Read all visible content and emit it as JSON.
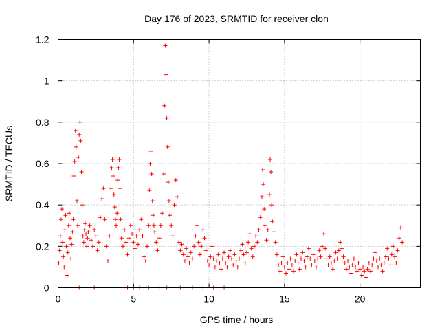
{
  "chart_data": {
    "type": "scatter",
    "title": "Day 176 of 2023, SRMTID for receiver clon",
    "xlabel": "GPS time / hours",
    "ylabel": "SRMTID / TECUs",
    "xlim": [
      0,
      24
    ],
    "ylim": [
      0,
      1.2
    ],
    "xticks": [
      0,
      5,
      10,
      15,
      20
    ],
    "xtick_labels": [
      "0",
      "5",
      "10",
      "15",
      "20"
    ],
    "yticks": [
      0,
      0.2,
      0.4,
      0.6,
      0.8,
      1,
      1.2
    ],
    "ytick_labels": [
      "0",
      "0.2",
      "0.4",
      "0.6",
      "0.8",
      "1",
      "1.2"
    ],
    "grid": true,
    "marker": "+",
    "color": "#ff0000",
    "series": [
      {
        "name": "SRMTID",
        "points": [
          [
            0.05,
            0.12
          ],
          [
            0.1,
            0.18
          ],
          [
            0.15,
            0.25
          ],
          [
            0.2,
            0.33
          ],
          [
            0.25,
            0.38
          ],
          [
            0.3,
            0.22
          ],
          [
            0.35,
            0.15
          ],
          [
            0.4,
            0.1
          ],
          [
            0.45,
            0.28
          ],
          [
            0.5,
            0.35
          ],
          [
            0.55,
            0.2
          ],
          [
            0.6,
            0.06
          ],
          [
            0.65,
            0.17
          ],
          [
            0.7,
            0.3
          ],
          [
            0.75,
            0.36
          ],
          [
            0.8,
            0.24
          ],
          [
            0.85,
            0.14
          ],
          [
            0.9,
            0.21
          ],
          [
            0.95,
            0.27
          ],
          [
            1.0,
            0.33
          ],
          [
            1.05,
            0.54
          ],
          [
            1.1,
            0.61
          ],
          [
            1.15,
            0.76
          ],
          [
            1.2,
            0.68
          ],
          [
            1.25,
            0.42
          ],
          [
            1.3,
            0.3
          ],
          [
            1.35,
            0.63
          ],
          [
            1.4,
            0.74
          ],
          [
            1.45,
            0.8
          ],
          [
            1.5,
            0.71
          ],
          [
            1.55,
            0.56
          ],
          [
            1.6,
            0.4
          ],
          [
            1.65,
            0.25
          ],
          [
            1.7,
            0.22
          ],
          [
            1.75,
            0.28
          ],
          [
            1.8,
            0.31
          ],
          [
            1.85,
            0.26
          ],
          [
            1.9,
            0.2
          ],
          [
            1.95,
            0.24
          ],
          [
            2.0,
            0.27
          ],
          [
            2.1,
            0.3
          ],
          [
            2.2,
            0.23
          ],
          [
            2.3,
            0.2
          ],
          [
            2.4,
            0.28
          ],
          [
            2.5,
            0.25
          ],
          [
            2.6,
            0.18
          ],
          [
            2.7,
            0.22
          ],
          [
            2.8,
            0.34
          ],
          [
            2.9,
            0.43
          ],
          [
            3.0,
            0.48
          ],
          [
            3.1,
            0.33
          ],
          [
            3.2,
            0.2
          ],
          [
            3.3,
            0.13
          ],
          [
            3.4,
            0.25
          ],
          [
            3.5,
            0.48
          ],
          [
            3.55,
            0.58
          ],
          [
            3.6,
            0.62
          ],
          [
            3.65,
            0.54
          ],
          [
            3.7,
            0.45
          ],
          [
            3.75,
            0.39
          ],
          [
            3.8,
            0.33
          ],
          [
            3.85,
            0.3
          ],
          [
            3.9,
            0.36
          ],
          [
            3.95,
            0.52
          ],
          [
            4.0,
            0.58
          ],
          [
            4.05,
            0.62
          ],
          [
            4.1,
            0.48
          ],
          [
            4.15,
            0.33
          ],
          [
            4.2,
            0.24
          ],
          [
            4.3,
            0.2
          ],
          [
            4.4,
            0.28
          ],
          [
            4.5,
            0.22
          ],
          [
            4.6,
            0.16
          ],
          [
            4.7,
            0.24
          ],
          [
            4.8,
            0.3
          ],
          [
            4.9,
            0.26
          ],
          [
            5.0,
            0.22
          ],
          [
            5.1,
            0.19
          ],
          [
            5.2,
            0.25
          ],
          [
            5.3,
            0.21
          ],
          [
            5.4,
            0.28
          ],
          [
            5.5,
            0.33
          ],
          [
            5.6,
            0.25
          ],
          [
            5.7,
            0.15
          ],
          [
            5.8,
            0.13
          ],
          [
            5.9,
            0.2
          ],
          [
            6.0,
            0.3
          ],
          [
            6.05,
            0.47
          ],
          [
            6.1,
            0.6
          ],
          [
            6.15,
            0.66
          ],
          [
            6.2,
            0.55
          ],
          [
            6.25,
            0.42
          ],
          [
            6.3,
            0.35
          ],
          [
            6.35,
            0.3
          ],
          [
            6.4,
            0.27
          ],
          [
            6.5,
            0.22
          ],
          [
            6.6,
            0.18
          ],
          [
            6.7,
            0.24
          ],
          [
            6.8,
            0.3
          ],
          [
            6.9,
            0.36
          ],
          [
            7.0,
            0.55
          ],
          [
            7.05,
            0.88
          ],
          [
            7.1,
            1.17
          ],
          [
            7.15,
            1.03
          ],
          [
            7.2,
            0.82
          ],
          [
            7.25,
            0.68
          ],
          [
            7.3,
            0.51
          ],
          [
            7.35,
            0.42
          ],
          [
            7.4,
            0.35
          ],
          [
            7.5,
            0.3
          ],
          [
            7.6,
            0.25
          ],
          [
            7.7,
            0.4
          ],
          [
            7.8,
            0.52
          ],
          [
            7.9,
            0.44
          ],
          [
            8.0,
            0.22
          ],
          [
            8.1,
            0.18
          ],
          [
            8.2,
            0.21
          ],
          [
            8.3,
            0.16
          ],
          [
            8.4,
            0.13
          ],
          [
            8.5,
            0.19
          ],
          [
            8.6,
            0.15
          ],
          [
            8.7,
            0.12
          ],
          [
            8.8,
            0.17
          ],
          [
            8.9,
            0.14
          ],
          [
            9.0,
            0.2
          ],
          [
            9.1,
            0.25
          ],
          [
            9.2,
            0.3
          ],
          [
            9.3,
            0.22
          ],
          [
            9.4,
            0.16
          ],
          [
            9.5,
            0.2
          ],
          [
            9.6,
            0.28
          ],
          [
            9.7,
            0.24
          ],
          [
            9.8,
            0.18
          ],
          [
            9.9,
            0.13
          ],
          [
            10.0,
            0.11
          ],
          [
            10.1,
            0.15
          ],
          [
            10.2,
            0.2
          ],
          [
            10.3,
            0.14
          ],
          [
            10.4,
            0.1
          ],
          [
            10.5,
            0.13
          ],
          [
            10.6,
            0.16
          ],
          [
            10.7,
            0.12
          ],
          [
            10.8,
            0.09
          ],
          [
            10.9,
            0.14
          ],
          [
            11.0,
            0.17
          ],
          [
            11.1,
            0.12
          ],
          [
            11.2,
            0.1
          ],
          [
            11.3,
            0.15
          ],
          [
            11.4,
            0.18
          ],
          [
            11.5,
            0.14
          ],
          [
            11.6,
            0.11
          ],
          [
            11.7,
            0.16
          ],
          [
            11.8,
            0.13
          ],
          [
            11.9,
            0.1
          ],
          [
            12.0,
            0.14
          ],
          [
            12.1,
            0.18
          ],
          [
            12.2,
            0.21
          ],
          [
            12.3,
            0.16
          ],
          [
            12.4,
            0.12
          ],
          [
            12.5,
            0.17
          ],
          [
            12.6,
            0.22
          ],
          [
            12.7,
            0.26
          ],
          [
            12.8,
            0.19
          ],
          [
            12.9,
            0.15
          ],
          [
            13.0,
            0.2
          ],
          [
            13.1,
            0.25
          ],
          [
            13.2,
            0.22
          ],
          [
            13.3,
            0.28
          ],
          [
            13.4,
            0.34
          ],
          [
            13.5,
            0.44
          ],
          [
            13.55,
            0.57
          ],
          [
            13.6,
            0.5
          ],
          [
            13.65,
            0.38
          ],
          [
            13.7,
            0.3
          ],
          [
            13.8,
            0.23
          ],
          [
            13.9,
            0.28
          ],
          [
            14.0,
            0.45
          ],
          [
            14.05,
            0.62
          ],
          [
            14.1,
            0.56
          ],
          [
            14.15,
            0.4
          ],
          [
            14.2,
            0.32
          ],
          [
            14.3,
            0.27
          ],
          [
            14.4,
            0.22
          ],
          [
            14.5,
            0.16
          ],
          [
            14.6,
            0.11
          ],
          [
            14.7,
            0.08
          ],
          [
            14.8,
            0.12
          ],
          [
            14.9,
            0.15
          ],
          [
            15.0,
            0.1
          ],
          [
            15.1,
            0.07
          ],
          [
            15.2,
            0.12
          ],
          [
            15.3,
            0.09
          ],
          [
            15.4,
            0.14
          ],
          [
            15.5,
            0.11
          ],
          [
            15.6,
            0.08
          ],
          [
            15.7,
            0.13
          ],
          [
            15.8,
            0.16
          ],
          [
            15.9,
            0.12
          ],
          [
            16.0,
            0.09
          ],
          [
            16.1,
            0.14
          ],
          [
            16.2,
            0.17
          ],
          [
            16.3,
            0.13
          ],
          [
            16.4,
            0.1
          ],
          [
            16.5,
            0.15
          ],
          [
            16.6,
            0.19
          ],
          [
            16.7,
            0.14
          ],
          [
            16.8,
            0.11
          ],
          [
            16.9,
            0.16
          ],
          [
            17.0,
            0.13
          ],
          [
            17.1,
            0.1
          ],
          [
            17.2,
            0.14
          ],
          [
            17.3,
            0.18
          ],
          [
            17.4,
            0.15
          ],
          [
            17.5,
            0.2
          ],
          [
            17.6,
            0.26
          ],
          [
            17.7,
            0.19
          ],
          [
            17.8,
            0.14
          ],
          [
            17.9,
            0.11
          ],
          [
            18.0,
            0.15
          ],
          [
            18.1,
            0.12
          ],
          [
            18.2,
            0.09
          ],
          [
            18.3,
            0.13
          ],
          [
            18.4,
            0.17
          ],
          [
            18.5,
            0.14
          ],
          [
            18.6,
            0.18
          ],
          [
            18.7,
            0.22
          ],
          [
            18.8,
            0.19
          ],
          [
            18.9,
            0.15
          ],
          [
            19.0,
            0.12
          ],
          [
            19.1,
            0.09
          ],
          [
            19.2,
            0.13
          ],
          [
            19.3,
            0.1
          ],
          [
            19.4,
            0.07
          ],
          [
            19.5,
            0.11
          ],
          [
            19.6,
            0.14
          ],
          [
            19.7,
            0.1
          ],
          [
            19.8,
            0.08
          ],
          [
            19.9,
            0.12
          ],
          [
            20.0,
            0.09
          ],
          [
            20.1,
            0.06
          ],
          [
            20.2,
            0.1
          ],
          [
            20.3,
            0.08
          ],
          [
            20.4,
            0.05
          ],
          [
            20.5,
            0.09
          ],
          [
            20.6,
            0.12
          ],
          [
            20.7,
            0.08
          ],
          [
            20.8,
            0.11
          ],
          [
            20.9,
            0.14
          ],
          [
            21.0,
            0.17
          ],
          [
            21.1,
            0.13
          ],
          [
            21.2,
            0.1
          ],
          [
            21.3,
            0.14
          ],
          [
            21.4,
            0.11
          ],
          [
            21.5,
            0.08
          ],
          [
            21.6,
            0.12
          ],
          [
            21.7,
            0.15
          ],
          [
            21.8,
            0.19
          ],
          [
            21.9,
            0.14
          ],
          [
            22.0,
            0.11
          ],
          [
            22.1,
            0.16
          ],
          [
            22.2,
            0.2
          ],
          [
            22.3,
            0.15
          ],
          [
            22.4,
            0.12
          ],
          [
            22.5,
            0.18
          ],
          [
            22.6,
            0.24
          ],
          [
            22.7,
            0.29
          ],
          [
            22.8,
            0.22
          ],
          [
            4.6,
            0
          ],
          [
            5.0,
            0
          ],
          [
            5.4,
            0
          ],
          [
            6.0,
            0
          ],
          [
            6.7,
            0
          ],
          [
            7.2,
            0
          ],
          [
            8.1,
            0
          ],
          [
            8.9,
            0
          ],
          [
            9.6,
            0
          ],
          [
            10.3,
            0
          ],
          [
            11.0,
            0
          ],
          [
            1.4,
            0
          ],
          [
            2.4,
            0
          ]
        ]
      }
    ]
  }
}
